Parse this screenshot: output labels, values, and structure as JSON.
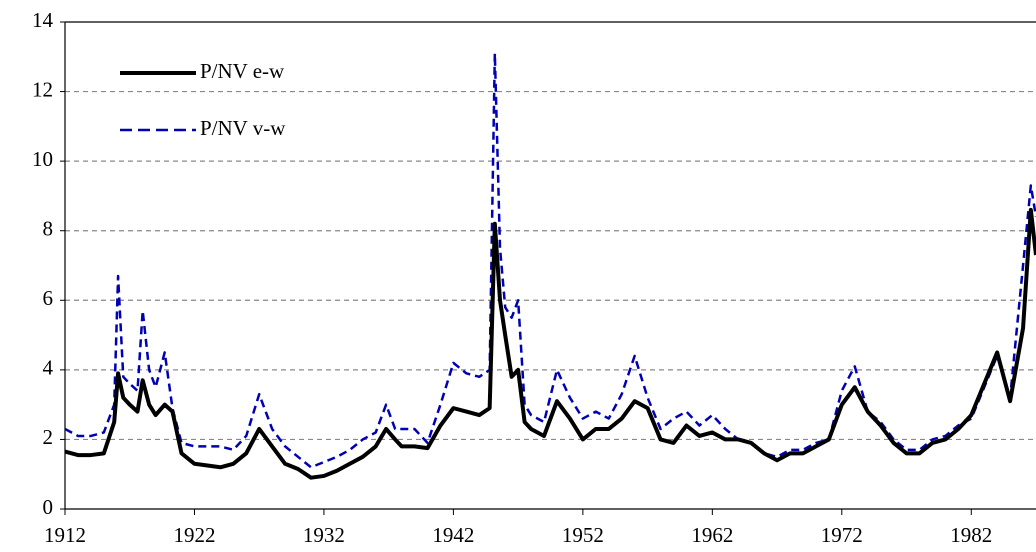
{
  "chart_data": {
    "type": "line",
    "x": [
      1912,
      1913,
      1914,
      1915,
      1915.8,
      1916.1,
      1916.5,
      1917,
      1917.6,
      1918,
      1918.5,
      1919,
      1919.7,
      1920.3,
      1921,
      1922,
      1923,
      1924,
      1925,
      1926,
      1927,
      1928,
      1929,
      1930,
      1931,
      1932,
      1933,
      1934,
      1935,
      1936,
      1936.8,
      1937.5,
      1938,
      1939,
      1940,
      1941,
      1942,
      1943,
      1944,
      1944.8,
      1945.2,
      1945.6,
      1946,
      1946.5,
      1947,
      1947.5,
      1948,
      1949,
      1950,
      1951,
      1952,
      1953,
      1954,
      1955,
      1956,
      1957,
      1958,
      1959,
      1960,
      1961,
      1962,
      1963,
      1964,
      1965,
      1966,
      1967,
      1968,
      1969,
      1970,
      1971,
      1972,
      1973,
      1974,
      1975,
      1976,
      1977,
      1978,
      1979,
      1980,
      1981,
      1982,
      1983,
      1984,
      1985,
      1986,
      1986.6,
      1987
    ],
    "series": [
      {
        "name": "P/NV e-w",
        "color": "#000000",
        "dash": false,
        "values": [
          1.65,
          1.55,
          1.55,
          1.6,
          2.5,
          3.9,
          3.2,
          3.0,
          2.8,
          3.7,
          3.0,
          2.7,
          3.0,
          2.8,
          1.6,
          1.3,
          1.25,
          1.2,
          1.3,
          1.6,
          2.3,
          1.8,
          1.3,
          1.15,
          0.9,
          0.95,
          1.1,
          1.3,
          1.5,
          1.8,
          2.3,
          2.0,
          1.8,
          1.8,
          1.75,
          2.4,
          2.9,
          2.8,
          2.7,
          2.9,
          8.2,
          6.0,
          5.0,
          3.8,
          4.0,
          2.5,
          2.3,
          2.1,
          3.1,
          2.6,
          2.0,
          2.3,
          2.3,
          2.6,
          3.1,
          2.9,
          2.0,
          1.9,
          2.4,
          2.1,
          2.2,
          2.0,
          2.0,
          1.9,
          1.6,
          1.4,
          1.6,
          1.6,
          1.8,
          2.0,
          3.0,
          3.5,
          2.8,
          2.4,
          1.9,
          1.6,
          1.6,
          1.9,
          2.0,
          2.3,
          2.7,
          3.6,
          4.5,
          3.1,
          5.2,
          8.6,
          7.3
        ]
      },
      {
        "name": "P/NV v-w",
        "color": "#0000b4",
        "dash": true,
        "values": [
          2.3,
          2.1,
          2.1,
          2.2,
          3.0,
          6.7,
          3.8,
          3.6,
          3.4,
          5.7,
          4.0,
          3.5,
          4.5,
          2.9,
          1.9,
          1.8,
          1.8,
          1.8,
          1.7,
          2.1,
          3.3,
          2.3,
          1.8,
          1.5,
          1.2,
          1.35,
          1.5,
          1.7,
          2.0,
          2.2,
          3.0,
          2.3,
          2.3,
          2.3,
          1.9,
          3.0,
          4.2,
          3.9,
          3.8,
          4.0,
          13.1,
          7.5,
          5.8,
          5.5,
          6.0,
          3.0,
          2.7,
          2.5,
          4.0,
          3.2,
          2.6,
          2.8,
          2.6,
          3.3,
          4.4,
          3.2,
          2.3,
          2.6,
          2.8,
          2.4,
          2.7,
          2.3,
          2.0,
          1.9,
          1.6,
          1.5,
          1.7,
          1.7,
          1.9,
          2.0,
          3.4,
          4.1,
          2.8,
          2.5,
          2.0,
          1.7,
          1.7,
          2.0,
          2.1,
          2.4,
          2.6,
          3.5,
          4.4,
          3.2,
          7.0,
          9.3,
          8.4
        ]
      }
    ],
    "xlim": [
      1912,
      1987
    ],
    "xticks": [
      1912,
      1922,
      1932,
      1942,
      1952,
      1962,
      1972,
      1982
    ],
    "ylim": [
      0,
      14
    ],
    "yticks": [
      0,
      2,
      4,
      6,
      8,
      10,
      12,
      14
    ],
    "grid": true,
    "legend": "upper-left"
  }
}
